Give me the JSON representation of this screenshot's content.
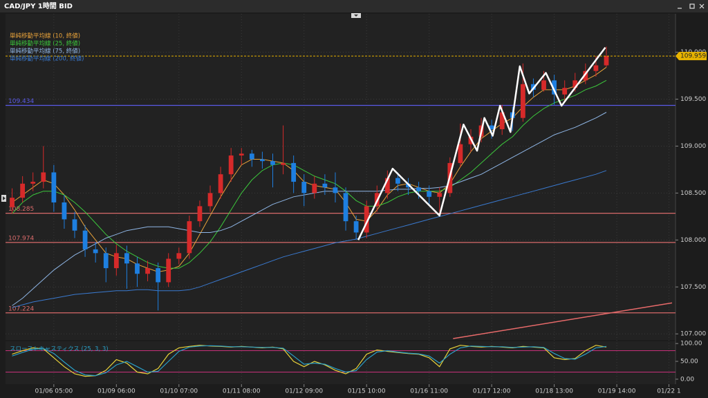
{
  "window": {
    "title": "CAD/JPY 1時間 BID"
  },
  "chart_data": [
    {
      "type": "candlestick",
      "categories": [
        null,
        null,
        null,
        null,
        "01/06 05:00",
        null,
        null,
        null,
        null,
        null,
        "01/09 06:00",
        null,
        null,
        null,
        null,
        null,
        "01/10 07:00",
        null,
        null,
        null,
        null,
        null,
        "01/11 08:00",
        null,
        null,
        null,
        null,
        null,
        "01/12 09:00",
        null,
        null,
        null,
        null,
        null,
        "01/15 10:00",
        null,
        null,
        null,
        null,
        null,
        "01/16 11:00",
        null,
        null,
        null,
        null,
        null,
        "01/17 12:00",
        null,
        null,
        null,
        null,
        null,
        "01/18 13:00",
        null,
        null,
        null,
        null,
        null,
        "01/19 14:00",
        null,
        null,
        null,
        null,
        "01/22 1"
      ],
      "open": [
        108.35,
        108.45,
        108.6,
        108.62,
        108.72,
        108.4,
        108.22,
        108.1,
        107.9,
        107.86,
        107.7,
        107.86,
        107.75,
        107.64,
        107.7,
        107.55,
        107.8,
        107.86,
        108.2,
        108.36,
        108.5,
        108.7,
        108.9,
        108.92,
        108.86,
        108.84,
        108.8,
        108.82,
        108.62,
        108.5,
        108.6,
        108.56,
        108.5,
        108.2,
        108.08,
        108.36,
        108.5,
        108.66,
        108.6,
        108.56,
        108.52,
        108.46,
        108.5,
        108.82,
        109.02,
        109.1,
        109.22,
        109.18,
        109.36,
        109.3,
        109.66,
        109.6,
        109.7,
        109.55,
        109.62,
        109.7,
        109.8,
        109.86,
        null,
        null,
        null,
        null,
        null,
        null
      ],
      "high": [
        108.55,
        108.68,
        108.72,
        109.0,
        108.8,
        108.48,
        108.3,
        108.16,
        107.98,
        107.92,
        107.95,
        107.94,
        107.82,
        107.78,
        107.76,
        107.86,
        107.92,
        108.26,
        108.42,
        108.58,
        108.78,
        108.98,
        108.98,
        108.96,
        108.94,
        108.92,
        109.22,
        108.9,
        108.7,
        108.68,
        108.7,
        108.72,
        108.56,
        108.26,
        108.42,
        108.58,
        108.74,
        108.72,
        108.66,
        108.62,
        108.58,
        108.56,
        108.88,
        109.24,
        109.18,
        109.3,
        109.28,
        109.44,
        109.42,
        109.88,
        109.72,
        109.8,
        109.76,
        109.7,
        109.78,
        109.88,
        109.96,
        110.06,
        null,
        null,
        null,
        null,
        null,
        null
      ],
      "low": [
        108.28,
        108.4,
        108.52,
        108.55,
        108.3,
        108.12,
        108.02,
        107.82,
        107.76,
        107.55,
        107.62,
        107.48,
        107.5,
        107.56,
        107.25,
        107.5,
        107.74,
        107.8,
        108.14,
        108.3,
        108.44,
        108.62,
        108.8,
        108.78,
        108.76,
        108.56,
        108.7,
        108.5,
        108.36,
        108.44,
        108.48,
        108.4,
        108.1,
        108.0,
        108.02,
        108.3,
        108.44,
        108.52,
        108.48,
        108.44,
        108.38,
        108.3,
        108.46,
        108.78,
        108.94,
        109.04,
        109.08,
        109.12,
        109.16,
        109.26,
        109.52,
        109.58,
        109.44,
        109.48,
        109.58,
        109.66,
        109.74,
        109.84,
        null,
        null,
        null,
        null,
        null,
        null
      ],
      "close": [
        108.45,
        108.6,
        108.62,
        108.72,
        108.4,
        108.22,
        108.1,
        107.9,
        107.86,
        107.7,
        107.86,
        107.75,
        107.64,
        107.7,
        107.55,
        107.8,
        107.86,
        108.2,
        108.36,
        108.5,
        108.7,
        108.9,
        108.92,
        108.86,
        108.84,
        108.8,
        108.82,
        108.62,
        108.5,
        108.6,
        108.56,
        108.5,
        108.2,
        108.08,
        108.36,
        108.5,
        108.66,
        108.6,
        108.56,
        108.52,
        108.46,
        108.5,
        108.82,
        109.02,
        109.1,
        109.22,
        109.18,
        109.36,
        109.3,
        109.66,
        109.6,
        109.7,
        109.55,
        109.62,
        109.7,
        109.8,
        109.86,
        109.96,
        null,
        null,
        null,
        null,
        null,
        null
      ],
      "up_color": "#d62a2a",
      "down_color": "#1e7fe0",
      "series": [
        {
          "name": "単純移動平均線 (10, 終値)",
          "color": "#e8a23a",
          "values": [
            108.4,
            108.48,
            108.56,
            108.64,
            108.6,
            108.48,
            108.32,
            108.14,
            108.0,
            107.86,
            107.82,
            107.8,
            107.74,
            107.7,
            107.66,
            107.68,
            107.72,
            107.86,
            108.06,
            108.26,
            108.46,
            108.64,
            108.8,
            108.86,
            108.86,
            108.84,
            108.82,
            108.74,
            108.62,
            108.58,
            108.56,
            108.54,
            108.4,
            108.22,
            108.2,
            108.32,
            108.48,
            108.58,
            108.6,
            108.56,
            108.52,
            108.5,
            108.6,
            108.78,
            108.94,
            109.08,
            109.16,
            109.24,
            109.3,
            109.42,
            109.52,
            109.6,
            109.6,
            109.6,
            109.64,
            109.7,
            109.76,
            109.84,
            null,
            null,
            null,
            null,
            null,
            null
          ]
        },
        {
          "name": "単純移動平均線 (25, 終値)",
          "color": "#3cc83c",
          "values": [
            108.28,
            108.4,
            108.48,
            108.52,
            108.52,
            108.48,
            108.4,
            108.3,
            108.18,
            108.06,
            107.96,
            107.88,
            107.82,
            107.76,
            107.72,
            107.7,
            107.7,
            107.76,
            107.86,
            107.98,
            108.14,
            108.32,
            108.5,
            108.64,
            108.74,
            108.8,
            108.82,
            108.8,
            108.74,
            108.68,
            108.64,
            108.6,
            108.52,
            108.42,
            108.36,
            108.36,
            108.4,
            108.46,
            108.5,
            108.52,
            108.52,
            108.52,
            108.56,
            108.64,
            108.72,
            108.82,
            108.92,
            109.02,
            109.1,
            109.22,
            109.32,
            109.4,
            109.46,
            109.5,
            109.54,
            109.6,
            109.64,
            109.7,
            null,
            null,
            null,
            null,
            null,
            null
          ]
        },
        {
          "name": "単純移動平均線 (75, 終値)",
          "color": "#8fb6e6",
          "values": [
            107.3,
            107.38,
            107.48,
            107.58,
            107.68,
            107.76,
            107.84,
            107.9,
            107.96,
            108.02,
            108.06,
            108.1,
            108.12,
            108.14,
            108.14,
            108.14,
            108.12,
            108.1,
            108.08,
            108.08,
            108.1,
            108.14,
            108.2,
            108.26,
            108.32,
            108.38,
            108.42,
            108.46,
            108.48,
            108.5,
            108.52,
            108.52,
            108.52,
            108.52,
            108.52,
            108.52,
            108.53,
            108.54,
            108.54,
            108.55,
            108.55,
            108.56,
            108.58,
            108.62,
            108.66,
            108.7,
            108.76,
            108.82,
            108.88,
            108.94,
            109.0,
            109.06,
            109.12,
            109.16,
            109.2,
            109.25,
            109.3,
            109.36,
            null,
            null,
            null,
            null,
            null,
            null
          ]
        },
        {
          "name": "単純移動平均線 (200, 終値)",
          "color": "#3a7ad0",
          "values": [
            107.28,
            107.31,
            107.34,
            107.36,
            107.38,
            107.4,
            107.42,
            107.43,
            107.44,
            107.45,
            107.46,
            107.46,
            107.47,
            107.47,
            107.46,
            107.46,
            107.46,
            107.47,
            107.5,
            107.54,
            107.58,
            107.62,
            107.66,
            107.7,
            107.74,
            107.78,
            107.82,
            107.85,
            107.88,
            107.91,
            107.94,
            107.97,
            107.99,
            108.01,
            108.04,
            108.07,
            108.1,
            108.13,
            108.16,
            108.19,
            108.22,
            108.25,
            108.28,
            108.31,
            108.34,
            108.37,
            108.4,
            108.43,
            108.46,
            108.49,
            108.52,
            108.55,
            108.58,
            108.61,
            108.64,
            108.67,
            108.7,
            108.74,
            null,
            null,
            null,
            null,
            null,
            null
          ]
        }
      ],
      "ylim": [
        106.95,
        110.35
      ],
      "yticks": [
        {
          "value": 107,
          "label": "107.000"
        },
        {
          "value": 107.5,
          "label": "107.500"
        },
        {
          "value": 108,
          "label": "108.000"
        },
        {
          "value": 108.5,
          "label": "108.500"
        },
        {
          "value": 109,
          "label": "109.000"
        },
        {
          "value": 109.5,
          "label": "109.500"
        },
        {
          "value": 110,
          "label": "110.000"
        }
      ],
      "grid": true,
      "levels": [
        {
          "value": 109.434,
          "color": "#5a5ae8"
        },
        {
          "value": 108.285,
          "color": "#d86a6a"
        },
        {
          "value": 107.974,
          "color": "#d86a6a"
        },
        {
          "value": 107.224,
          "color": "#d86a6a"
        }
      ],
      "current_price": {
        "value": 109.959,
        "color": "#e8b400"
      },
      "zigzag": {
        "color": "#ffffff",
        "x": [
          33.2,
          36.5,
          41,
          43.3,
          44.6,
          45.3,
          46.1,
          46.8,
          47.8,
          48.7,
          49.6,
          51.2,
          52.7,
          56.9
        ],
        "y": [
          108.0,
          108.76,
          108.26,
          109.23,
          108.95,
          109.3,
          109.11,
          109.43,
          109.15,
          109.85,
          109.56,
          109.78,
          109.43,
          110.05
        ]
      },
      "trendline": {
        "color": "#e86a6a",
        "x": [
          42.3,
          63.3
        ],
        "y": [
          106.95,
          107.33
        ]
      }
    },
    {
      "type": "stochastic",
      "title": "スローストキャスティクス (25, 3, 3)",
      "series": [
        {
          "color": "#e8d23a",
          "values": [
            70,
            80,
            88,
            85,
            60,
            35,
            15,
            8,
            10,
            25,
            55,
            45,
            20,
            15,
            30,
            70,
            88,
            92,
            95,
            93,
            92,
            90,
            92,
            90,
            88,
            90,
            85,
            50,
            35,
            50,
            40,
            25,
            15,
            30,
            70,
            82,
            78,
            75,
            72,
            70,
            60,
            35,
            85,
            95,
            92,
            90,
            92,
            90,
            88,
            92,
            90,
            88,
            60,
            55,
            58,
            80,
            95,
            90,
            null,
            null,
            null,
            null,
            null,
            null
          ]
        },
        {
          "color": "#2aa0c8",
          "values": [
            65,
            75,
            84,
            86,
            72,
            48,
            25,
            12,
            10,
            18,
            40,
            50,
            35,
            20,
            22,
            50,
            78,
            90,
            93,
            94,
            93,
            91,
            91,
            90,
            89,
            89,
            87,
            65,
            42,
            45,
            42,
            30,
            20,
            24,
            55,
            76,
            80,
            76,
            73,
            71,
            65,
            45,
            70,
            88,
            93,
            92,
            91,
            91,
            89,
            90,
            91,
            89,
            72,
            58,
            56,
            70,
            88,
            92,
            null,
            null,
            null,
            null,
            null,
            null
          ]
        }
      ],
      "ylim": [
        -14,
        110
      ],
      "yticks": [
        {
          "value": 0,
          "label": "0.00"
        },
        {
          "value": 50,
          "label": "50.00"
        },
        {
          "value": 100,
          "label": "100.00"
        }
      ],
      "levels": [
        20,
        80
      ],
      "level_color": "#c8307a"
    }
  ]
}
